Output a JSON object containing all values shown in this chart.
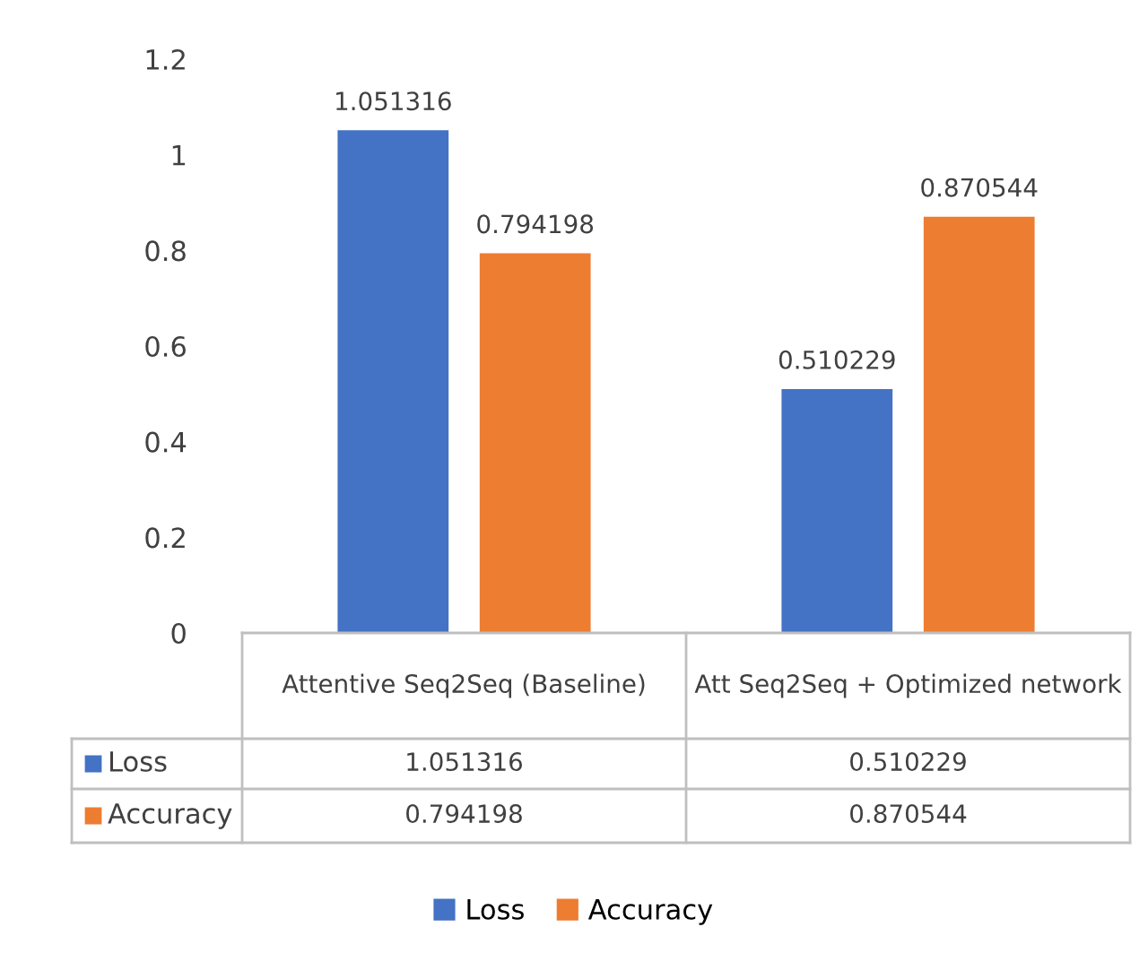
{
  "chart_data": {
    "type": "bar",
    "categories": [
      "Attentive Seq2Seq (Baseline)",
      "Att Seq2Seq + Optimized network"
    ],
    "series": [
      {
        "name": "Loss",
        "color": "#4472c4",
        "values": [
          1.051316,
          0.510229
        ]
      },
      {
        "name": "Accuracy",
        "color": "#ed7d31",
        "values": [
          0.794198,
          0.870544
        ]
      }
    ],
    "ylim": [
      0,
      1.2
    ],
    "yticks": [
      0,
      0.2,
      0.4,
      0.6,
      0.8,
      1,
      1.2
    ],
    "annotations": [
      "1.051316",
      "0.510229",
      "0.794198",
      "0.870544"
    ],
    "data_labels": true,
    "grid": false,
    "legend": "bottom"
  }
}
